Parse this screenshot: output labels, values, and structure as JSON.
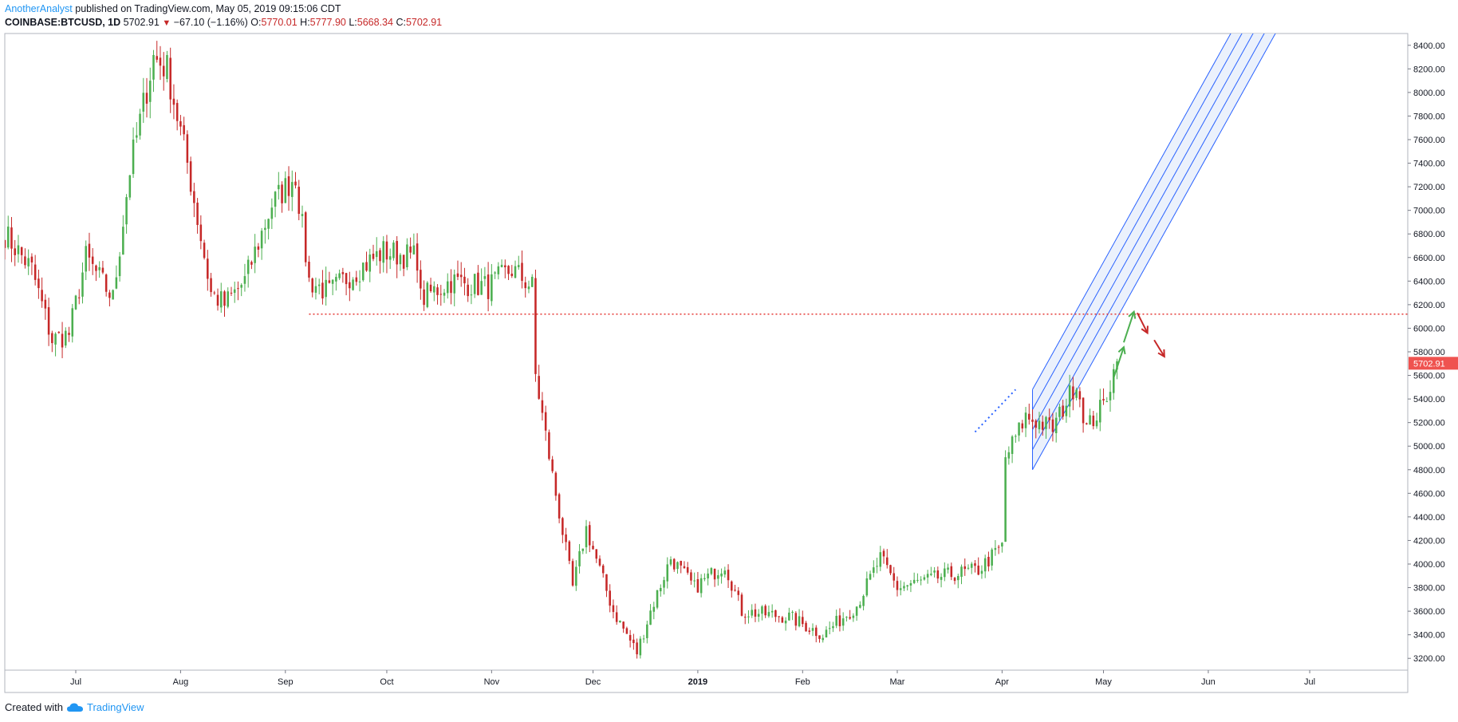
{
  "header": {
    "author": "AnotherAnalyst",
    "published_text": "published on TradingView.com, May 05, 2019 09:15:06 CDT",
    "symbol": "COINBASE:BTCUSD, 1D",
    "last": "5702.91",
    "change": "−67.10 (−1.16%)",
    "open_label": "O:",
    "open": "5770.01",
    "high_label": "H:",
    "high": "5777.90",
    "low_label": "L:",
    "low": "5668.34",
    "close_label": "C:",
    "close": "5702.91"
  },
  "footer": {
    "created_with": "Created with",
    "brand": "TradingView",
    "logo_icon": "tradingview-cloud-icon"
  },
  "colors": {
    "up": "#4caf50",
    "down": "#c62828",
    "channel": "#2962ff",
    "channel_fill": "#e8eefc",
    "level": "#e53935",
    "price_tag": "#ef5350"
  },
  "chart_data": {
    "type": "candlestick",
    "x_labels": [
      "Jul",
      "Aug",
      "Sep",
      "Oct",
      "Nov",
      "Dec",
      "2019",
      "Feb",
      "Mar",
      "Apr",
      "May",
      "Jun",
      "Jul"
    ],
    "x_range": [
      "2018-06-10",
      "2019-07-30"
    ],
    "ylim": [
      3100,
      8500
    ],
    "y_ticks": [
      "3200.00",
      "3400.00",
      "3600.00",
      "3800.00",
      "4000.00",
      "4200.00",
      "4400.00",
      "4600.00",
      "4800.00",
      "5000.00",
      "5200.00",
      "5400.00",
      "5600.00",
      "5800.00",
      "6000.00",
      "6200.00",
      "6400.00",
      "6600.00",
      "6800.00",
      "7000.00",
      "7200.00",
      "7400.00",
      "7600.00",
      "7800.00",
      "8000.00",
      "8200.00",
      "8400.00"
    ],
    "last_price": "5702.91",
    "anchors": [
      [
        "2018-06-10",
        6800
      ],
      [
        "2018-06-18",
        6500
      ],
      [
        "2018-06-24",
        5900
      ],
      [
        "2018-06-29",
        5950
      ],
      [
        "2018-07-04",
        6600
      ],
      [
        "2018-07-12",
        6250
      ],
      [
        "2018-07-17",
        7350
      ],
      [
        "2018-07-24",
        8300
      ],
      [
        "2018-07-28",
        8200
      ],
      [
        "2018-08-03",
        7400
      ],
      [
        "2018-08-10",
        6300
      ],
      [
        "2018-08-14",
        6200
      ],
      [
        "2018-08-20",
        6400
      ],
      [
        "2018-08-28",
        7050
      ],
      [
        "2018-09-04",
        7300
      ],
      [
        "2018-09-08",
        6400
      ],
      [
        "2018-09-14",
        6300
      ],
      [
        "2018-09-20",
        6450
      ],
      [
        "2018-09-30",
        6650
      ],
      [
        "2018-10-10",
        6600
      ],
      [
        "2018-10-11",
        6250
      ],
      [
        "2018-10-20",
        6400
      ],
      [
        "2018-10-31",
        6350
      ],
      [
        "2018-11-07",
        6500
      ],
      [
        "2018-11-13",
        6350
      ],
      [
        "2018-11-14",
        5600
      ],
      [
        "2018-11-19",
        4750
      ],
      [
        "2018-11-25",
        3800
      ],
      [
        "2018-11-29",
        4300
      ],
      [
        "2018-12-07",
        3600
      ],
      [
        "2018-12-14",
        3250
      ],
      [
        "2018-12-18",
        3600
      ],
      [
        "2018-12-24",
        4050
      ],
      [
        "2018-12-31",
        3800
      ],
      [
        "2019-01-09",
        4000
      ],
      [
        "2019-01-14",
        3600
      ],
      [
        "2019-01-28",
        3550
      ],
      [
        "2019-02-07",
        3400
      ],
      [
        "2019-02-17",
        3650
      ],
      [
        "2019-02-24",
        4050
      ],
      [
        "2019-03-01",
        3800
      ],
      [
        "2019-03-15",
        3900
      ],
      [
        "2019-03-25",
        3950
      ],
      [
        "2019-04-01",
        4150
      ],
      [
        "2019-04-02",
        4900
      ],
      [
        "2019-04-08",
        5250
      ],
      [
        "2019-04-16",
        5150
      ],
      [
        "2019-04-23",
        5550
      ],
      [
        "2019-04-26",
        5150
      ],
      [
        "2019-05-01",
        5350
      ],
      [
        "2019-05-05",
        5720
      ]
    ],
    "horizontal_level": {
      "price": 6120,
      "from": "2018-09-08",
      "to": "2019-07-30",
      "style": "dotted"
    },
    "parallel_channel": {
      "style": "parallel lines, upward sloping",
      "line_count": 5,
      "line_price_offsets": [
        0,
        -170,
        -340,
        -510,
        -680
      ],
      "reference_date": "2019-04-10",
      "reference_price": 5480,
      "slope_per_day": 51.5,
      "start_date": "2019-04-10",
      "end_date": "2019-07-25"
    },
    "annotations": [
      {
        "type": "arrow",
        "color": "green",
        "from": [
          "2019-05-04",
          5580
        ],
        "to": [
          "2019-05-07",
          5840
        ]
      },
      {
        "type": "arrow",
        "color": "green",
        "from": [
          "2019-05-07",
          5880
        ],
        "to": [
          "2019-05-10",
          6140
        ]
      },
      {
        "type": "arrow",
        "color": "red",
        "from": [
          "2019-05-11",
          6130
        ],
        "to": [
          "2019-05-14",
          5960
        ]
      },
      {
        "type": "arrow",
        "color": "red",
        "from": [
          "2019-05-16",
          5900
        ],
        "to": [
          "2019-05-19",
          5760
        ]
      },
      {
        "type": "dotted-line",
        "color": "blue",
        "from": [
          "2019-03-24",
          5120
        ],
        "to": [
          "2019-04-05",
          5480
        ]
      }
    ]
  }
}
